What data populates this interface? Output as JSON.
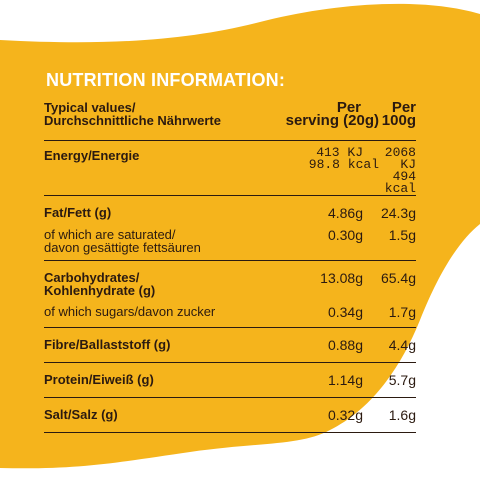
{
  "title": "NUTRITION INFORMATION:",
  "columns": {
    "label_line1": "Typical values/",
    "label_line2": "Durchschnittliche Nährwerte",
    "serving_line1": "Per",
    "serving_line2": "serving (20g)",
    "per100_line1": "Per",
    "per100_line2": "100g"
  },
  "rows": [
    {
      "label": "Energy/Energie",
      "serving": [
        "413 KJ",
        "98.8 kcal"
      ],
      "per100": [
        "2068 KJ",
        "494 kcal"
      ]
    },
    {
      "label": "Fat/Fett (g)",
      "serving": "4.86g",
      "per100": "24.3g"
    },
    {
      "label_line1": "of which are saturated/",
      "label_line2": "davon gesättigte fettsäuren",
      "serving": "0.30g",
      "per100": "1.5g"
    },
    {
      "label_line1": "Carbohydrates/",
      "label_line2": "Kohlenhydrate (g)",
      "serving": "13.08g",
      "per100": "65.4g"
    },
    {
      "label": "of which sugars/davon zucker",
      "serving": "0.34g",
      "per100": "1.7g"
    },
    {
      "label": "Fibre/Ballaststoff (g)",
      "serving": "0.88g",
      "per100": "4.4g"
    },
    {
      "label": "Protein/Eiweiß (g)",
      "serving": "1.14g",
      "per100": "5.7g"
    },
    {
      "label": "Salt/Salz (g)",
      "serving": "0.32g",
      "per100": "1.6g"
    }
  ],
  "colors": {
    "background": "#f5b41c",
    "wave": "#ffffff",
    "text": "#2b1a10",
    "heading": "#ffffff"
  }
}
